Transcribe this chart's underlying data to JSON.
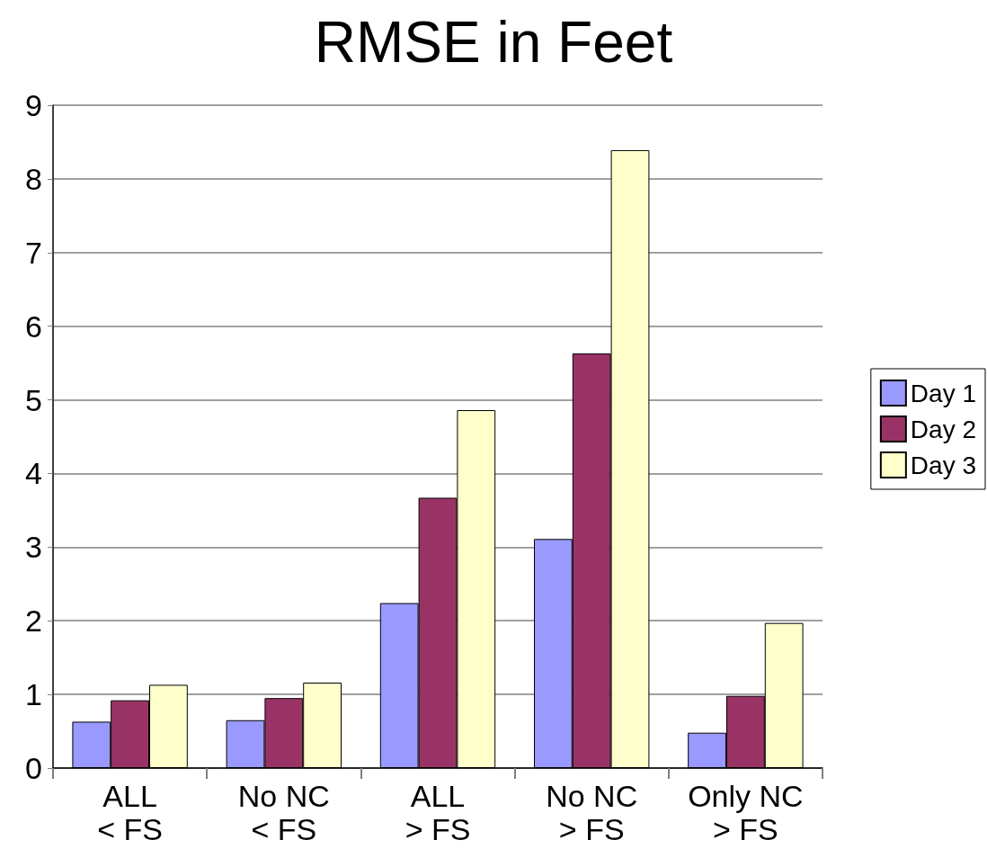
{
  "chart_data": {
    "type": "bar",
    "title": "RMSE in Feet",
    "categories": [
      "ALL\n< FS",
      "No NC\n< FS",
      "ALL\n> FS",
      "No NC\n> FS",
      "Only NC\n> FS"
    ],
    "series": [
      {
        "name": "Day 1",
        "color": "#9999ff",
        "values": [
          0.63,
          0.65,
          2.24,
          3.11,
          0.48
        ]
      },
      {
        "name": "Day 2",
        "color": "#993366",
        "values": [
          0.92,
          0.95,
          3.67,
          5.63,
          0.98
        ]
      },
      {
        "name": "Day 3",
        "color": "#ffffcc",
        "values": [
          1.13,
          1.16,
          4.86,
          8.39,
          1.97
        ]
      }
    ],
    "ylim": [
      0,
      9
    ],
    "yticks": [
      0,
      1,
      2,
      3,
      4,
      5,
      6,
      7,
      8,
      9
    ],
    "grid": "y",
    "legend": "right"
  }
}
